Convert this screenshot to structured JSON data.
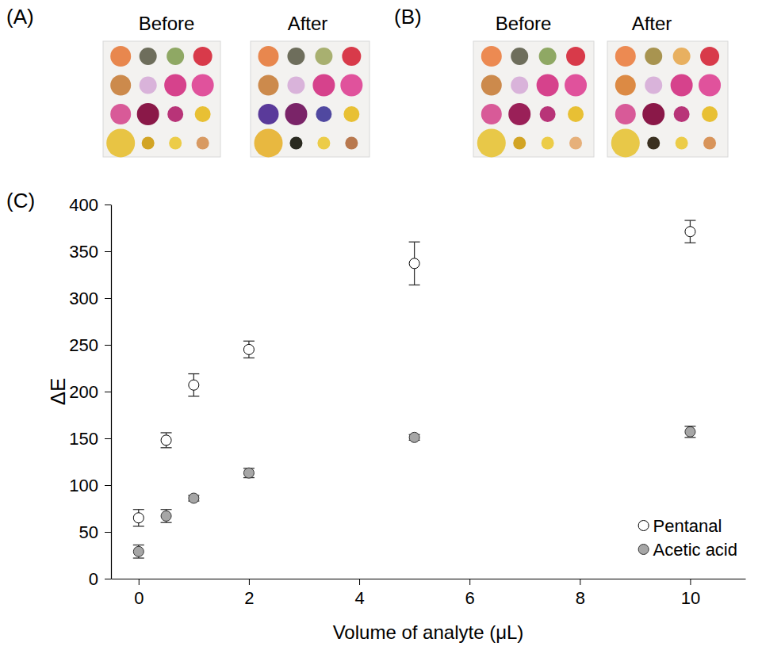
{
  "panels": [
    {
      "label": "(A)",
      "images": [
        "Before",
        "After"
      ]
    },
    {
      "label": "(B)",
      "images": [
        "Before",
        "After"
      ]
    },
    {
      "label": "(C)"
    }
  ],
  "chart_data": {
    "type": "scatter",
    "x_label": "Volume of analyte (μL)",
    "y_label": "ΔE",
    "x": [
      0,
      0.5,
      1,
      2,
      5,
      10
    ],
    "series": [
      {
        "name": "Pentanal",
        "color": "#ffffff",
        "marker": "circle",
        "values": [
          65,
          148,
          207,
          245,
          337,
          371
        ],
        "errors": [
          9,
          8,
          12,
          9,
          23,
          12
        ]
      },
      {
        "name": "Acetic acid",
        "color": "#a6a6a6",
        "marker": "circle",
        "values": [
          29,
          67,
          86,
          113,
          151,
          157
        ],
        "errors": [
          7,
          7,
          3,
          5,
          3,
          6
        ]
      }
    ],
    "xlim": [
      -0.5,
      11
    ],
    "ylim": [
      0,
      400
    ],
    "xticks": [
      0,
      2,
      4,
      6,
      8,
      10
    ],
    "yticks": [
      0,
      50,
      100,
      150,
      200,
      250,
      300,
      350,
      400
    ],
    "grid": false,
    "legend": "lower right"
  }
}
